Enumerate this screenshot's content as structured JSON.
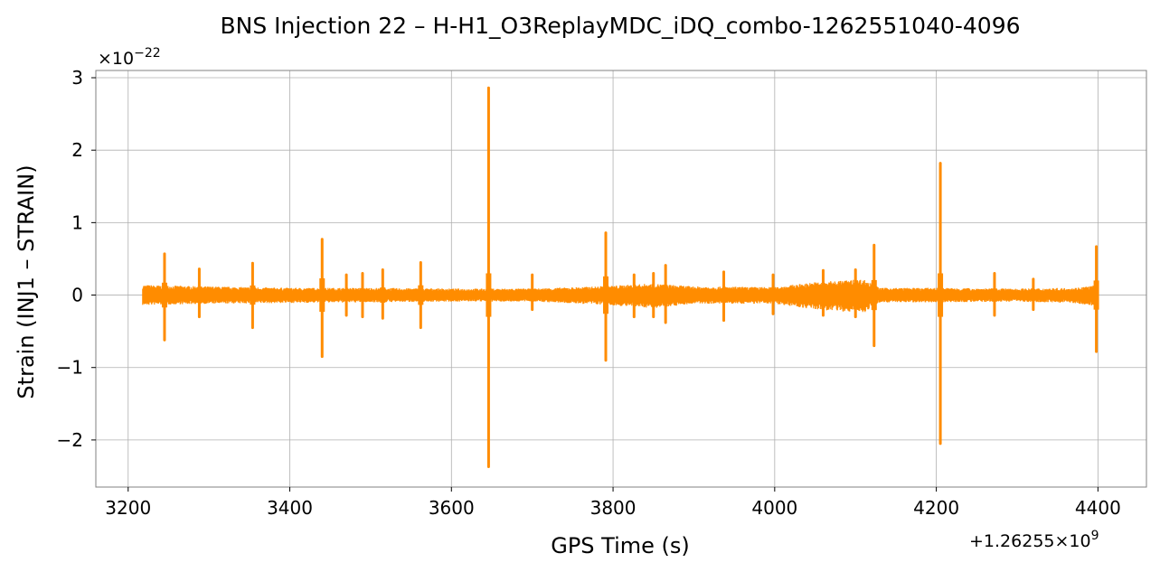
{
  "chart_data": {
    "type": "line",
    "title": "BNS Injection 22 – H-H1_O3ReplayMDC_iDQ_combo-1262551040-4096",
    "xlabel": "GPS Time (s)",
    "ylabel": "Strain (INJ1 – STRAIN)",
    "x_offset_label": "+1.26255×10",
    "x_offset_exp": "9",
    "y_scale_label": "×10",
    "y_scale_exp": "−22",
    "xlim": [
      3160,
      4460
    ],
    "ylim": [
      -2.65,
      3.1
    ],
    "x_ticks": [
      3200,
      3400,
      3600,
      3800,
      4000,
      4200,
      4400
    ],
    "x_tick_labels": [
      "3200",
      "3400",
      "3600",
      "3800",
      "4000",
      "4200",
      "4400"
    ],
    "y_ticks": [
      -2,
      -1,
      0,
      1,
      2,
      3
    ],
    "y_tick_labels": [
      "−2",
      "−1",
      "0",
      "1",
      "2",
      "3"
    ],
    "grid": true,
    "color": "#ff8c00",
    "series": [
      {
        "data_range": [
          3218,
          4400
        ],
        "baseline_upper": [
          [
            3218,
            0.14
          ],
          [
            3300,
            0.12
          ],
          [
            3400,
            0.1
          ],
          [
            3500,
            0.1
          ],
          [
            3600,
            0.09
          ],
          [
            3700,
            0.09
          ],
          [
            3780,
            0.12
          ],
          [
            3850,
            0.16
          ],
          [
            3900,
            0.12
          ],
          [
            4000,
            0.11
          ],
          [
            4050,
            0.18
          ],
          [
            4110,
            0.22
          ],
          [
            4130,
            0.1
          ],
          [
            4200,
            0.1
          ],
          [
            4300,
            0.09
          ],
          [
            4370,
            0.1
          ],
          [
            4400,
            0.14
          ]
        ],
        "baseline_lower": [
          [
            3218,
            -0.14
          ],
          [
            3300,
            -0.12
          ],
          [
            3400,
            -0.11
          ],
          [
            3500,
            -0.1
          ],
          [
            3600,
            -0.09
          ],
          [
            3700,
            -0.09
          ],
          [
            3780,
            -0.13
          ],
          [
            3850,
            -0.18
          ],
          [
            3900,
            -0.12
          ],
          [
            4000,
            -0.12
          ],
          [
            4050,
            -0.2
          ],
          [
            4110,
            -0.25
          ],
          [
            4130,
            -0.1
          ],
          [
            4200,
            -0.1
          ],
          [
            4300,
            -0.09
          ],
          [
            4370,
            -0.11
          ],
          [
            4400,
            -0.16
          ]
        ],
        "glitches": [
          {
            "x": 3245,
            "max": 0.57,
            "min": -0.62
          },
          {
            "x": 3288,
            "max": 0.36,
            "min": -0.3
          },
          {
            "x": 3354,
            "max": 0.44,
            "min": -0.45
          },
          {
            "x": 3440,
            "max": 0.77,
            "min": -0.85
          },
          {
            "x": 3470,
            "max": 0.28,
            "min": -0.28
          },
          {
            "x": 3490,
            "max": 0.3,
            "min": -0.3
          },
          {
            "x": 3515,
            "max": 0.35,
            "min": -0.32
          },
          {
            "x": 3562,
            "max": 0.45,
            "min": -0.45
          },
          {
            "x": 3646,
            "max": 2.86,
            "min": -2.37
          },
          {
            "x": 3700,
            "max": 0.28,
            "min": -0.2
          },
          {
            "x": 3791,
            "max": 0.86,
            "min": -0.9
          },
          {
            "x": 3826,
            "max": 0.28,
            "min": -0.3
          },
          {
            "x": 3850,
            "max": 0.3,
            "min": -0.3
          },
          {
            "x": 3865,
            "max": 0.41,
            "min": -0.38
          },
          {
            "x": 3937,
            "max": 0.32,
            "min": -0.35
          },
          {
            "x": 3998,
            "max": 0.28,
            "min": -0.26
          },
          {
            "x": 4060,
            "max": 0.34,
            "min": -0.28
          },
          {
            "x": 4100,
            "max": 0.35,
            "min": -0.3
          },
          {
            "x": 4123,
            "max": 0.69,
            "min": -0.7
          },
          {
            "x": 4205,
            "max": 1.82,
            "min": -2.05
          },
          {
            "x": 4272,
            "max": 0.3,
            "min": -0.28
          },
          {
            "x": 4320,
            "max": 0.22,
            "min": -0.2
          },
          {
            "x": 4398,
            "max": 0.67,
            "min": -0.78
          }
        ]
      }
    ]
  }
}
